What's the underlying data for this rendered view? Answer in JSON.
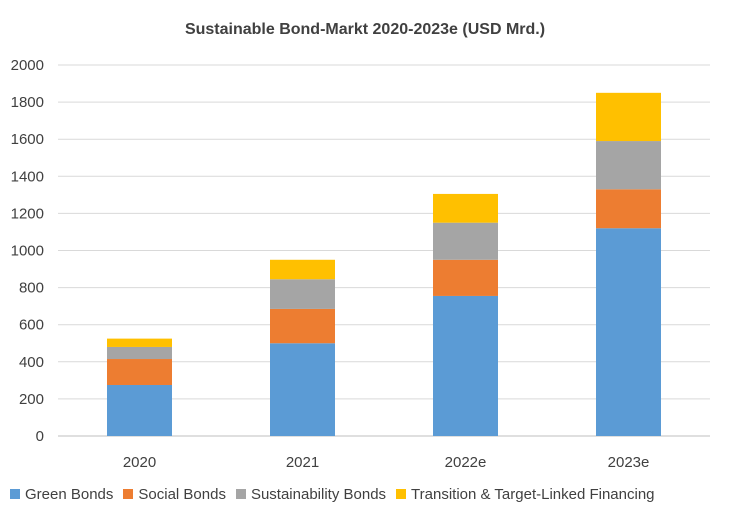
{
  "chart_data": {
    "type": "bar",
    "stacked": true,
    "title": "Sustainable Bond-Markt 2020-2023e (USD Mrd.)",
    "categories": [
      "2020",
      "2021",
      "2022e",
      "2023e"
    ],
    "series": [
      {
        "name": "Green Bonds",
        "color": "#5B9BD5",
        "values": [
          275,
          500,
          755,
          1120
        ]
      },
      {
        "name": "Social Bonds",
        "color": "#ED7D31",
        "values": [
          140,
          185,
          195,
          210
        ]
      },
      {
        "name": "Sustainability Bonds",
        "color": "#A5A5A5",
        "values": [
          65,
          160,
          200,
          260
        ]
      },
      {
        "name": "Transition & Target-Linked Financing",
        "color": "#FFC000",
        "values": [
          45,
          105,
          155,
          260
        ]
      }
    ],
    "ylim": [
      0,
      2000
    ],
    "yticks": [
      "0",
      "200",
      "400",
      "600",
      "800",
      "1000",
      "1200",
      "1400",
      "1600",
      "1800",
      "2000"
    ],
    "grid": true,
    "legend_position": "bottom",
    "xlabel": "",
    "ylabel": ""
  }
}
